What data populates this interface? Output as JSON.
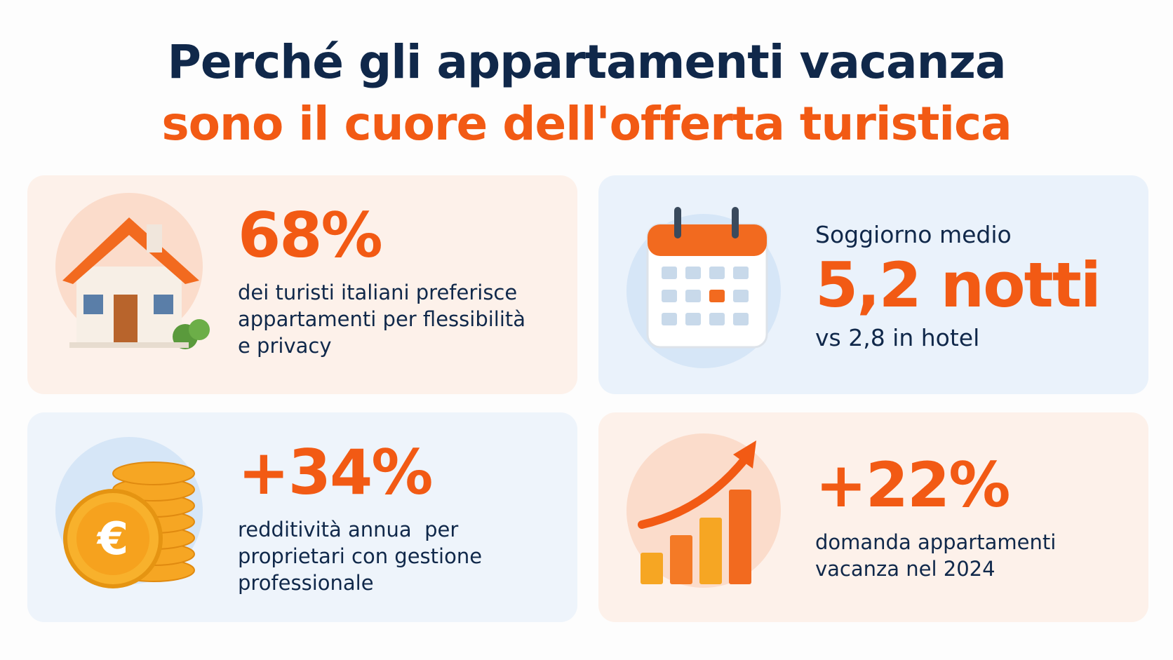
{
  "header": {
    "title_line1": "Perché gli appartamenti vacanza",
    "title_line2": "sono il cuore dell'offerta turistica"
  },
  "cards": [
    {
      "stat": "68%",
      "lines": [
        "dei turisti italiani preferisce",
        "appartamenti per flessibilità",
        "e privacy"
      ]
    },
    {
      "label": "Soggiorno medio",
      "stat": "5,2 notti",
      "lines": [
        "vs 2,8 in hotel"
      ]
    },
    {
      "stat": "+34%",
      "lines": [
        "redditività annua  per",
        "proprietari con gestione",
        "professionale"
      ]
    },
    {
      "stat": "+22%",
      "lines": [
        "domanda appartamenti",
        "vacanza nel 2024"
      ]
    }
  ]
}
